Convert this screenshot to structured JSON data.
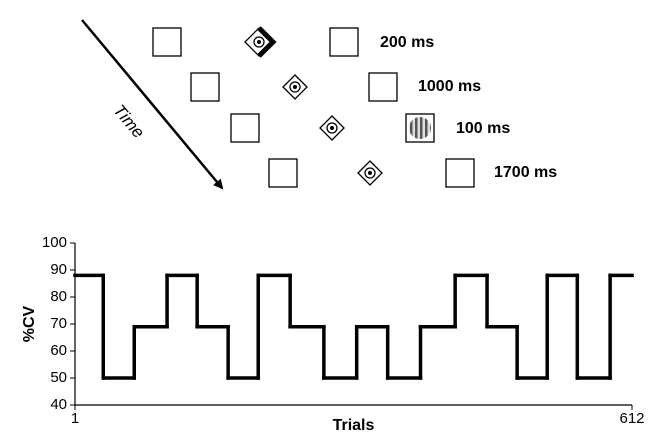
{
  "diagram": {
    "time_label": "Time",
    "durations": [
      "200 ms",
      "1000 ms",
      "100 ms",
      "1700 ms"
    ]
  },
  "chart_data": {
    "type": "line",
    "step": "post",
    "x": [
      1,
      32,
      66,
      102,
      135,
      169,
      202,
      237,
      274,
      310,
      344,
      380,
      418,
      453,
      486,
      519,
      552,
      588
    ],
    "values": [
      88,
      50,
      69,
      88,
      69,
      50,
      88,
      69,
      50,
      69,
      50,
      69,
      88,
      69,
      50,
      88,
      50,
      88
    ],
    "color": "#000000",
    "xlim": [
      1,
      612
    ],
    "xticks": [
      1,
      612
    ],
    "ylim": [
      40,
      100
    ],
    "yticks": [
      40,
      50,
      60,
      70,
      80,
      90,
      100
    ],
    "xlabel": "Trials",
    "ylabel": "%CV"
  }
}
